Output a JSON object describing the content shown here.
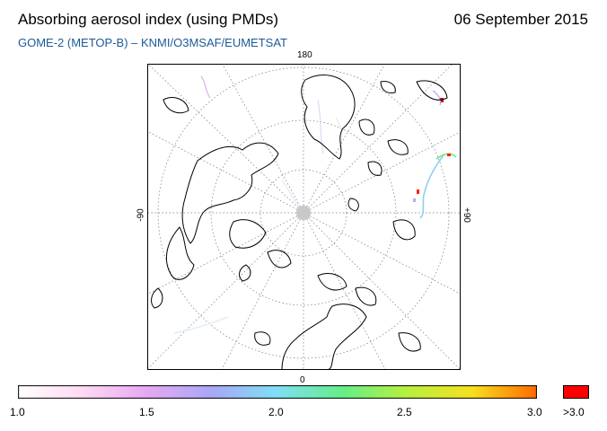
{
  "header": {
    "title": "Absorbing aerosol index (using PMDs)",
    "date": "06 September 2015",
    "subtitle": "GOME-2 (METOP-B)  –   KNMI/O3MSAF/EUMETSAT"
  },
  "map": {
    "projection": "polar-stereographic-north",
    "longitude_labels": {
      "top": "180",
      "bottom": "0",
      "left": "-90",
      "right": "+90"
    },
    "pole_fill_color": "#c8c8c8",
    "coastline_color": "#000000",
    "graticule_style": "dotted"
  },
  "colorbar": {
    "tick_labels": [
      "1.0",
      "1.5",
      "2.0",
      "2.5",
      "3.0"
    ],
    "overflow_label": ">3.0",
    "overflow_color": "#ff0000",
    "gradient_colors": [
      "#ffffff",
      "#ffd9f2",
      "#e6a8f2",
      "#a8a8f7",
      "#7fe0f5",
      "#66ee88",
      "#b8f040",
      "#f8e020",
      "#ff6a00"
    ]
  }
}
